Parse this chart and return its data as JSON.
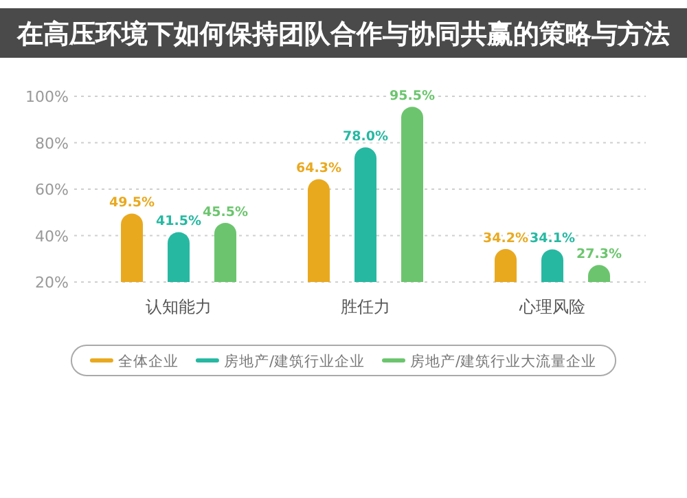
{
  "chart_data": {
    "type": "bar",
    "title": "在高压环境下如何保持团队合作与协同共赢的策略与方法",
    "categories": [
      "认知能力",
      "胜任力",
      "心理风险"
    ],
    "series": [
      {
        "name": "全体企业",
        "color": "#e9a91f",
        "values": [
          49.5,
          64.3,
          34.2
        ]
      },
      {
        "name": "房地产/建筑行业企业",
        "color": "#27b8a2",
        "values": [
          41.5,
          78.0,
          34.1
        ]
      },
      {
        "name": "房地产/建筑行业大流量企业",
        "color": "#6cc56e",
        "values": [
          45.5,
          95.5,
          27.3
        ]
      }
    ],
    "value_labels": [
      [
        "49.5%",
        "64.3%",
        "34.2%"
      ],
      [
        "41.5%",
        "78.0%",
        "34.1%"
      ],
      [
        "45.5%",
        "95.5%",
        "27.3%"
      ]
    ],
    "ylim": [
      20,
      100
    ],
    "yticks": [
      {
        "value": 20,
        "label": "20%"
      },
      {
        "value": 40,
        "label": "40%"
      },
      {
        "value": 60,
        "label": "60%"
      },
      {
        "value": 80,
        "label": "80%"
      },
      {
        "value": 100,
        "label": "100%"
      }
    ],
    "grid": "y",
    "legend": "bottom"
  }
}
